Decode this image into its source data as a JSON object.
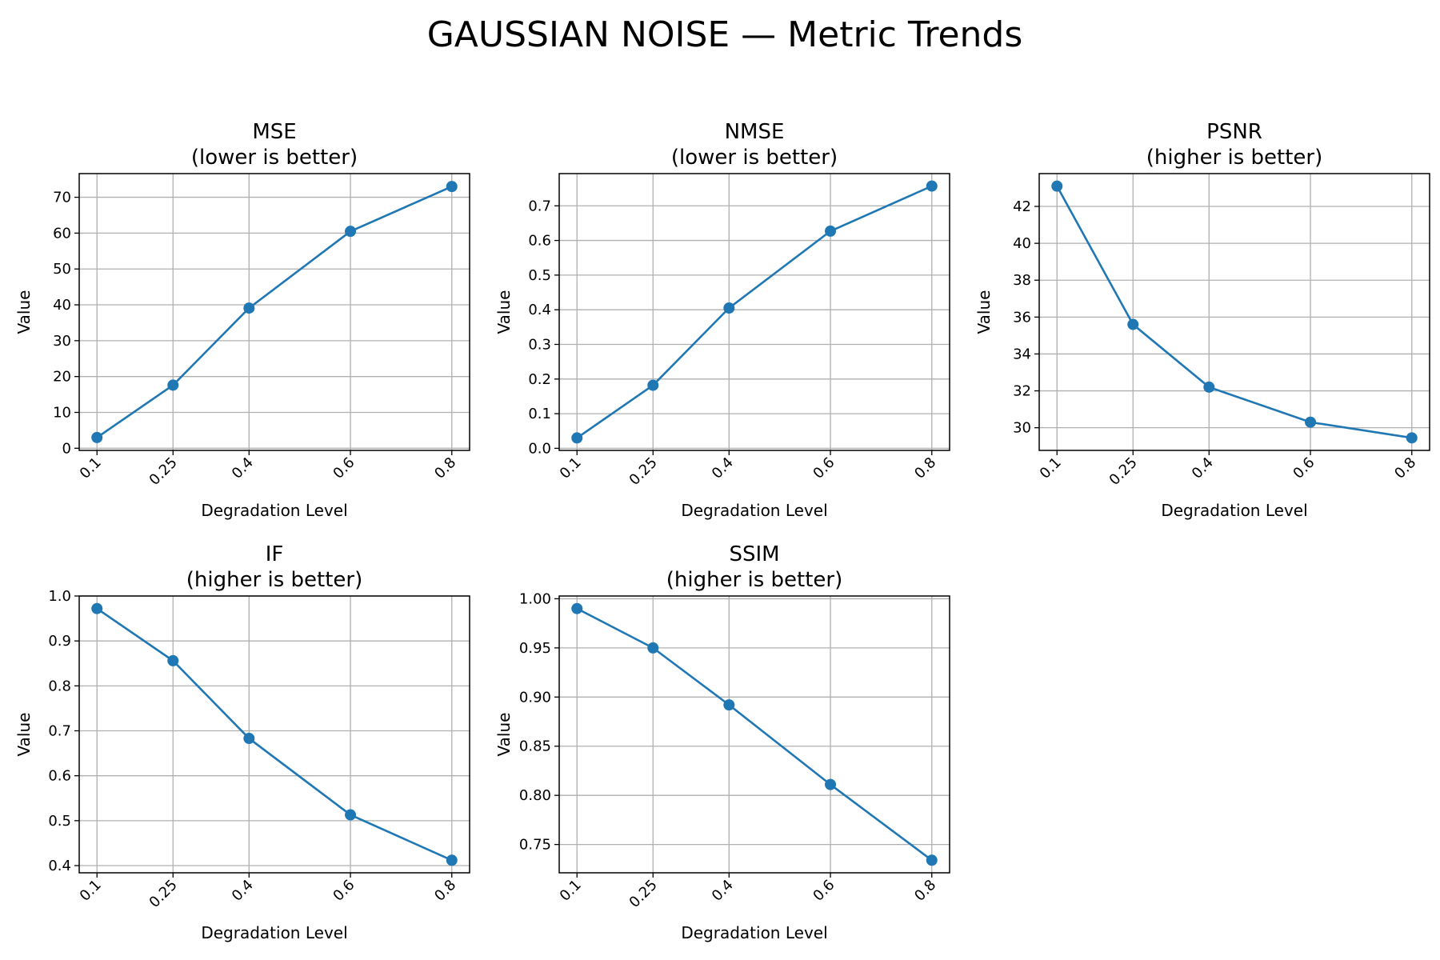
{
  "figure": {
    "title": "GAUSSIAN NOISE — Metric Trends"
  },
  "colors": {
    "series": "#1f77b4"
  },
  "chart_data": [
    {
      "type": "line",
      "title": "MSE\n(lower is better)",
      "xlabel": "Degradation Level",
      "ylabel": "Value",
      "x": [
        0.1,
        0.25,
        0.4,
        0.6,
        0.8
      ],
      "xticks": [
        "0.1",
        "0.25",
        "0.4",
        "0.6",
        "0.8"
      ],
      "values": [
        3.0,
        17.6,
        39.1,
        60.5,
        73.0
      ],
      "ylim": [
        -0.6,
        76.6
      ],
      "yticks": [
        "0",
        "10",
        "20",
        "30",
        "40",
        "50",
        "60",
        "70"
      ],
      "grid": true
    },
    {
      "type": "line",
      "title": "NMSE\n(lower is better)",
      "xlabel": "Degradation Level",
      "ylabel": "Value",
      "x": [
        0.1,
        0.25,
        0.4,
        0.6,
        0.8
      ],
      "xticks": [
        "0.1",
        "0.25",
        "0.4",
        "0.6",
        "0.8"
      ],
      "values": [
        0.03,
        0.182,
        0.405,
        0.627,
        0.757
      ],
      "ylim": [
        -0.006,
        0.793
      ],
      "yticks": [
        "0.0",
        "0.1",
        "0.2",
        "0.3",
        "0.4",
        "0.5",
        "0.6",
        "0.7"
      ],
      "grid": true
    },
    {
      "type": "line",
      "title": "PSNR\n(higher is better)",
      "xlabel": "Degradation Level",
      "ylabel": "Value",
      "x": [
        0.1,
        0.25,
        0.4,
        0.6,
        0.8
      ],
      "xticks": [
        "0.1",
        "0.25",
        "0.4",
        "0.6",
        "0.8"
      ],
      "values": [
        43.1,
        35.6,
        32.2,
        30.3,
        29.45
      ],
      "ylim": [
        28.77,
        43.78
      ],
      "yticks": [
        "30",
        "32",
        "34",
        "36",
        "38",
        "40",
        "42"
      ],
      "grid": true
    },
    {
      "type": "line",
      "title": "IF\n(higher is better)",
      "xlabel": "Degradation Level",
      "ylabel": "Value",
      "x": [
        0.1,
        0.25,
        0.4,
        0.6,
        0.8
      ],
      "xticks": [
        "0.1",
        "0.25",
        "0.4",
        "0.6",
        "0.8"
      ],
      "values": [
        0.972,
        0.856,
        0.683,
        0.513,
        0.412
      ],
      "ylim": [
        0.384,
        1.0
      ],
      "yticks": [
        "0.4",
        "0.5",
        "0.6",
        "0.7",
        "0.8",
        "0.9",
        "1.0"
      ],
      "grid": true
    },
    {
      "type": "line",
      "title": "SSIM\n(higher is better)",
      "xlabel": "Degradation Level",
      "ylabel": "Value",
      "x": [
        0.1,
        0.25,
        0.4,
        0.6,
        0.8
      ],
      "xticks": [
        "0.1",
        "0.25",
        "0.4",
        "0.6",
        "0.8"
      ],
      "values": [
        0.99,
        0.95,
        0.892,
        0.811,
        0.734
      ],
      "ylim": [
        0.7212,
        1.0028
      ],
      "yticks": [
        "0.75",
        "0.80",
        "0.85",
        "0.90",
        "0.95",
        "1.00"
      ],
      "grid": true
    }
  ]
}
